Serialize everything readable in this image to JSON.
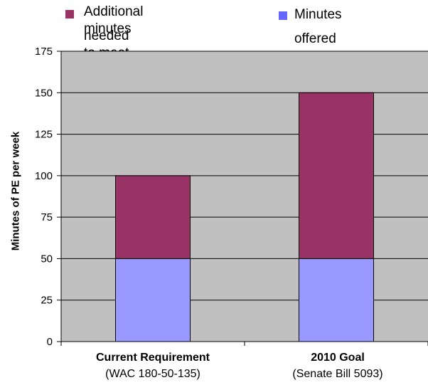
{
  "chart_data": {
    "type": "bar",
    "stacked": true,
    "categories": [
      "Current Requirement",
      "2010 Goal"
    ],
    "category_sublabels": [
      "(WAC 180-50-135)",
      "(Senate Bill 5093)"
    ],
    "series": [
      {
        "name": "Minutes offered",
        "values": [
          50,
          50
        ],
        "color": "#9999ff"
      },
      {
        "name": "Additional minutes needed to meet goal",
        "values": [
          50,
          100
        ],
        "color": "#993366"
      }
    ],
    "legend": {
      "item1_line1": "Additional minutes",
      "item1_line2": "needed to meet goal",
      "item2_line1": "Minutes",
      "item2_line2": "offered",
      "placement": "top"
    },
    "ylabel": "Minutes of PE per week",
    "xlabel": "",
    "ylim": [
      0,
      175
    ],
    "yticks": [
      0,
      25,
      50,
      75,
      100,
      125,
      150,
      175
    ],
    "grid": true,
    "plot_background": "#c0c0c0"
  }
}
